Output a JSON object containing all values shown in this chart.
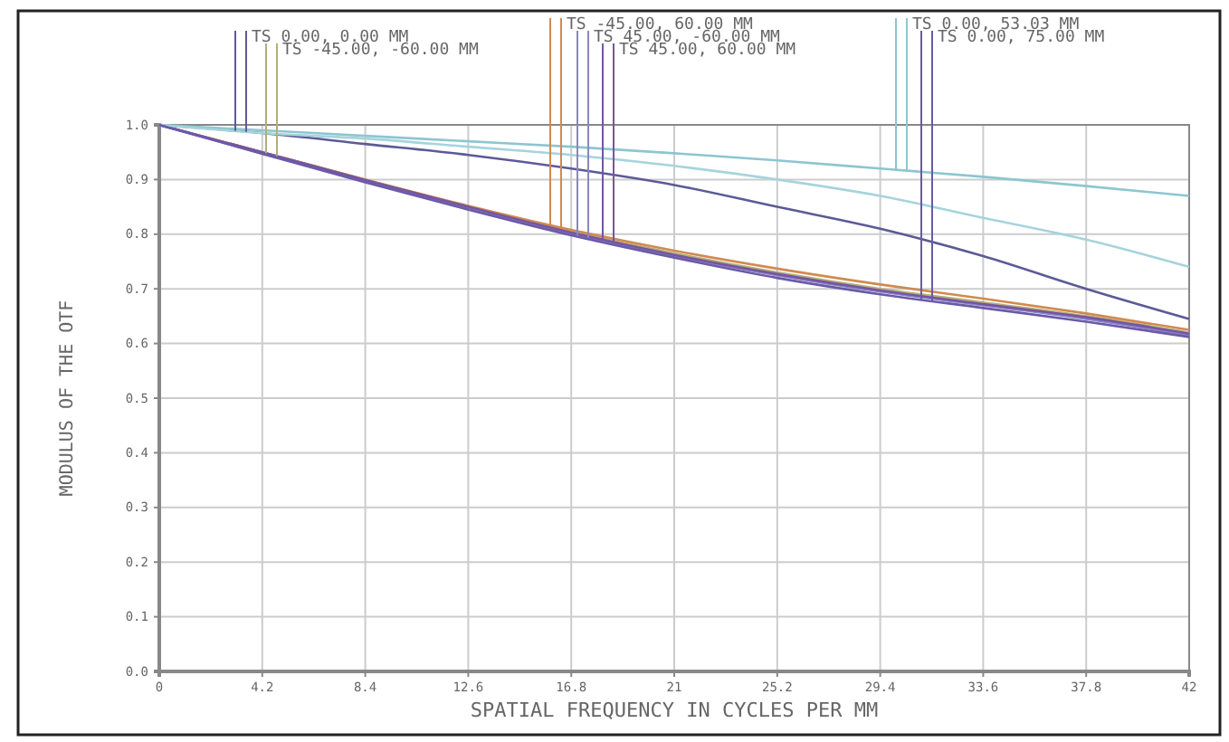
{
  "chart_data": {
    "type": "line",
    "xlabel": "SPATIAL FREQUENCY IN CYCLES PER MM",
    "ylabel": "MODULUS OF THE OTF",
    "x": [
      0,
      4.2,
      8.4,
      12.6,
      16.8,
      21,
      25.2,
      29.4,
      33.6,
      37.8,
      42
    ],
    "xlim": [
      0,
      42
    ],
    "xticks": [
      0,
      4.2,
      8.4,
      12.6,
      16.8,
      21,
      25.2,
      29.4,
      33.6,
      37.8,
      42
    ],
    "ylim": [
      0,
      1
    ],
    "yticks": [
      {
        "value": 0,
        "label": "0.0"
      },
      {
        "value": 0.1,
        "label": "0.1"
      },
      {
        "value": 0.2,
        "label": "0.2"
      },
      {
        "value": 0.3,
        "label": "0.3"
      },
      {
        "value": 0.4,
        "label": "0.4"
      },
      {
        "value": 0.5,
        "label": "0.5"
      },
      {
        "value": 0.6,
        "label": "0.6"
      },
      {
        "value": 0.7,
        "label": "0.7"
      },
      {
        "value": 0.8,
        "label": "0.8"
      },
      {
        "value": 0.9,
        "label": "0.9"
      },
      {
        "value": 1,
        "label": "1.0"
      }
    ],
    "grid": true,
    "marker": "none",
    "line_style": "solid",
    "series": [
      {
        "name": "TS 0.00, 0.00 MM",
        "color": "#5c5a96",
        "values": [
          1,
          0.985,
          0.965,
          0.945,
          0.92,
          0.89,
          0.85,
          0.81,
          0.76,
          0.7,
          0.645
        ]
      },
      {
        "name": "TS -45.00, -60.00 MM",
        "color": "#b4ae78",
        "values": [
          1,
          0.95,
          0.9,
          0.85,
          0.805,
          0.765,
          0.73,
          0.7,
          0.675,
          0.65,
          0.62
        ]
      },
      {
        "name": "TS -45.00, 60.00 MM",
        "color": "#d08a50",
        "values": [
          1,
          0.95,
          0.9,
          0.852,
          0.808,
          0.77,
          0.737,
          0.708,
          0.682,
          0.655,
          0.625
        ]
      },
      {
        "name": "TS 45.00, -60.00 MM",
        "color": "#8a86c4",
        "values": [
          1,
          0.948,
          0.897,
          0.847,
          0.8,
          0.76,
          0.725,
          0.695,
          0.67,
          0.645,
          0.615
        ]
      },
      {
        "name": "TS 45.00, 60.00 MM",
        "color": "#7654a4",
        "values": [
          1,
          0.95,
          0.899,
          0.85,
          0.803,
          0.762,
          0.727,
          0.697,
          0.672,
          0.648,
          0.618
        ]
      },
      {
        "name": "TS 0.00, 53.03 MM",
        "color": "#8cc6d0",
        "values": [
          1,
          0.99,
          0.98,
          0.97,
          0.96,
          0.948,
          0.935,
          0.92,
          0.905,
          0.888,
          0.87
        ]
      },
      {
        "color": "#a6d4dc",
        "values": [
          1,
          0.985,
          0.975,
          0.96,
          0.945,
          0.925,
          0.9,
          0.87,
          0.83,
          0.79,
          0.74
        ]
      },
      {
        "name": "TS 0.00, 75.00 MM",
        "color": "#6a5aa8",
        "values": [
          1,
          0.947,
          0.895,
          0.845,
          0.798,
          0.757,
          0.72,
          0.69,
          0.665,
          0.64,
          0.612
        ]
      }
    ]
  }
}
